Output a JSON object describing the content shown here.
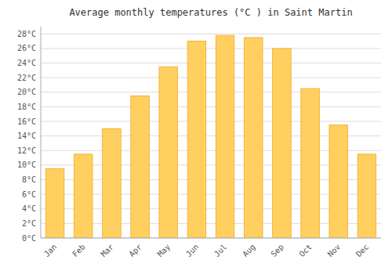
{
  "chart_data": {
    "type": "bar",
    "title": "Average monthly temperatures (°C ) in Saint Martin",
    "categories": [
      "Jan",
      "Feb",
      "Mar",
      "Apr",
      "May",
      "Jun",
      "Jul",
      "Aug",
      "Sep",
      "Oct",
      "Nov",
      "Dec"
    ],
    "values": [
      9.5,
      11.5,
      15.0,
      19.5,
      23.5,
      27.0,
      27.8,
      27.5,
      26.0,
      20.5,
      15.5,
      11.5
    ],
    "color": "#FFD060",
    "ylim": [
      0,
      29
    ],
    "yticks": [
      {
        "value": 0,
        "label": "0°C"
      },
      {
        "value": 2,
        "label": "2°C"
      },
      {
        "value": 4,
        "label": "4°C"
      },
      {
        "value": 6,
        "label": "6°C"
      },
      {
        "value": 8,
        "label": "8°C"
      },
      {
        "value": 10,
        "label": "10°C"
      },
      {
        "value": 12,
        "label": "12°C"
      },
      {
        "value": 14,
        "label": "14°C"
      },
      {
        "value": 16,
        "label": "16°C"
      },
      {
        "value": 18,
        "label": "18°C"
      },
      {
        "value": 20,
        "label": "20°C"
      },
      {
        "value": 22,
        "label": "22°C"
      },
      {
        "value": 24,
        "label": "24°C"
      },
      {
        "value": 26,
        "label": "26°C"
      },
      {
        "value": 28,
        "label": "28°C"
      }
    ],
    "grid": true
  }
}
